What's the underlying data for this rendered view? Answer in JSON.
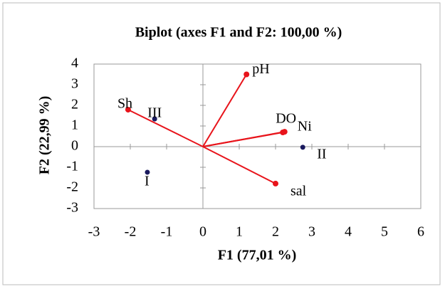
{
  "chart_data": {
    "type": "biplot",
    "title": "Biplot (axes F1 and F2: 100,00 %)",
    "x_label": "F1 (77,01 %)",
    "y_label": "F2 (22,99 %)",
    "xlim": [
      -3,
      6
    ],
    "ylim": [
      -3,
      4
    ],
    "xticks": [
      -3,
      -2,
      -1,
      0,
      1,
      2,
      3,
      4,
      5,
      6
    ],
    "yticks": [
      -3,
      -2,
      -1,
      0,
      1,
      2,
      3,
      4
    ],
    "series": [
      {
        "color": "#e8141b",
        "vector": true,
        "labels": [
          "pH",
          "Sh",
          "DO",
          "Ni",
          "sal"
        ],
        "x": [
          1.2,
          -2.06,
          2.2,
          2.25,
          2.0
        ],
        "values": [
          3.5,
          1.79,
          0.69,
          0.72,
          -1.79
        ]
      },
      {
        "color": "#1a1a5e",
        "vector": false,
        "labels": [
          "III",
          "I",
          "II"
        ],
        "x": [
          -1.33,
          -1.53,
          2.75
        ],
        "values": [
          1.34,
          -1.24,
          -0.03
        ]
      }
    ]
  }
}
